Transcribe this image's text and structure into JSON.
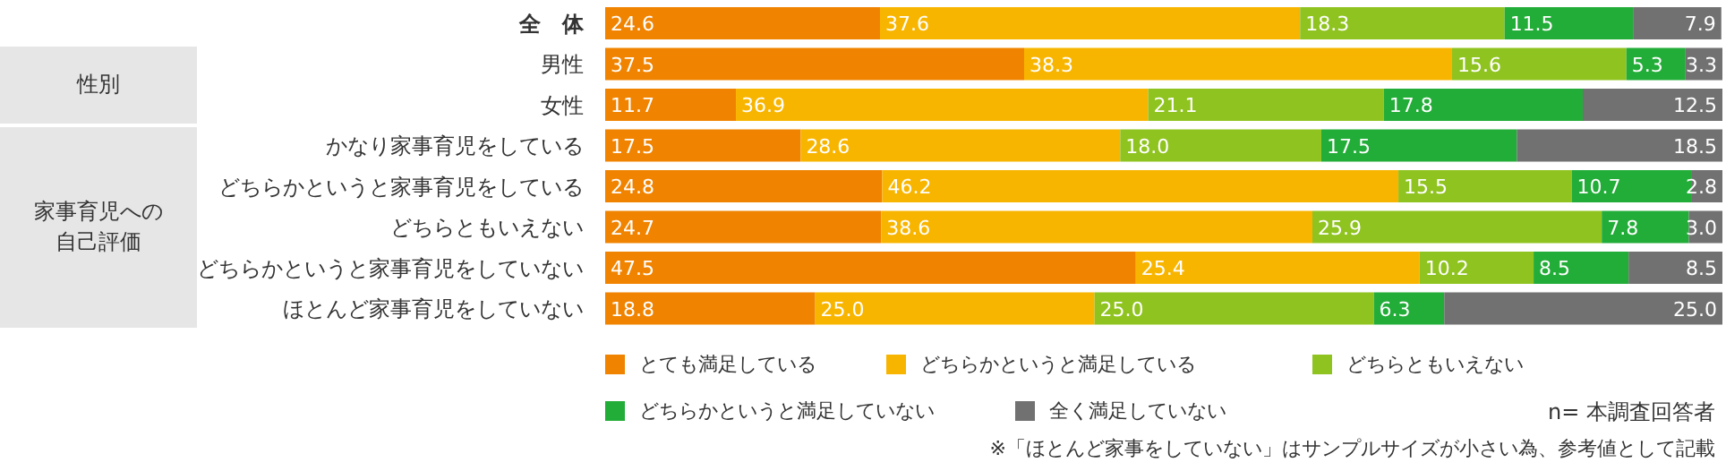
{
  "chart_data": {
    "type": "bar",
    "orientation": "horizontal",
    "stacked": true,
    "categories": [
      "全　体",
      "男性",
      "女性",
      "かなり家事育児をしている",
      "どちらかというと家事育児をしている",
      "どちらともいえない",
      "どちらかというと家事育児をしていない",
      "ほとんど家事育児をしていない"
    ],
    "series": [
      {
        "name": "とても満足している",
        "color": "#f08300",
        "values": [
          24.6,
          37.5,
          11.7,
          17.5,
          24.8,
          24.7,
          47.5,
          18.8
        ],
        "value_labels": [
          "24.6",
          "37.5",
          "11.7",
          "17.5",
          "24.8",
          "24.7",
          "47.5",
          "18.8"
        ]
      },
      {
        "name": "どちらかというと満足している",
        "color": "#f8b500",
        "values": [
          37.6,
          38.3,
          36.9,
          28.6,
          46.2,
          38.6,
          25.4,
          25.0
        ],
        "value_labels": [
          "37.6",
          "38.3",
          "36.9",
          "28.6",
          "46.2",
          "38.6",
          "25.4",
          "25.0"
        ]
      },
      {
        "name": "どちらともいえない",
        "color": "#8fc31f",
        "values": [
          18.3,
          15.6,
          21.1,
          18.0,
          15.5,
          25.9,
          10.2,
          25.0
        ],
        "value_labels": [
          "18.3",
          "15.6",
          "21.1",
          "18.0",
          "15.5",
          "25.9",
          "10.2",
          "25.0"
        ]
      },
      {
        "name": "どちらかというと満足していない",
        "color": "#22ac38",
        "values": [
          11.5,
          5.3,
          17.8,
          17.5,
          10.7,
          7.8,
          8.5,
          6.3
        ],
        "value_labels": [
          "11.5",
          "5.3",
          "17.8",
          "17.5",
          "10.7",
          "7.8",
          "8.5",
          "6.3"
        ]
      },
      {
        "name": "全く満足していない",
        "color": "#727171",
        "values": [
          7.9,
          3.3,
          12.5,
          18.5,
          2.8,
          3.0,
          8.5,
          25.0
        ],
        "value_labels": [
          "7.9",
          "3.3",
          "12.5",
          "18.5",
          "2.8",
          "3.0",
          "8.5",
          "25.0"
        ]
      }
    ],
    "xlim": [
      0,
      100
    ],
    "tick_labels": "y",
    "grid": false,
    "legend": "bottom",
    "annotations": [
      "性別",
      "家事育児への自己評価",
      "n= 本調査回答者",
      "※「ほとんど家事をしていない」はサンプルサイズが小さい為、参考値として記載"
    ]
  }
}
